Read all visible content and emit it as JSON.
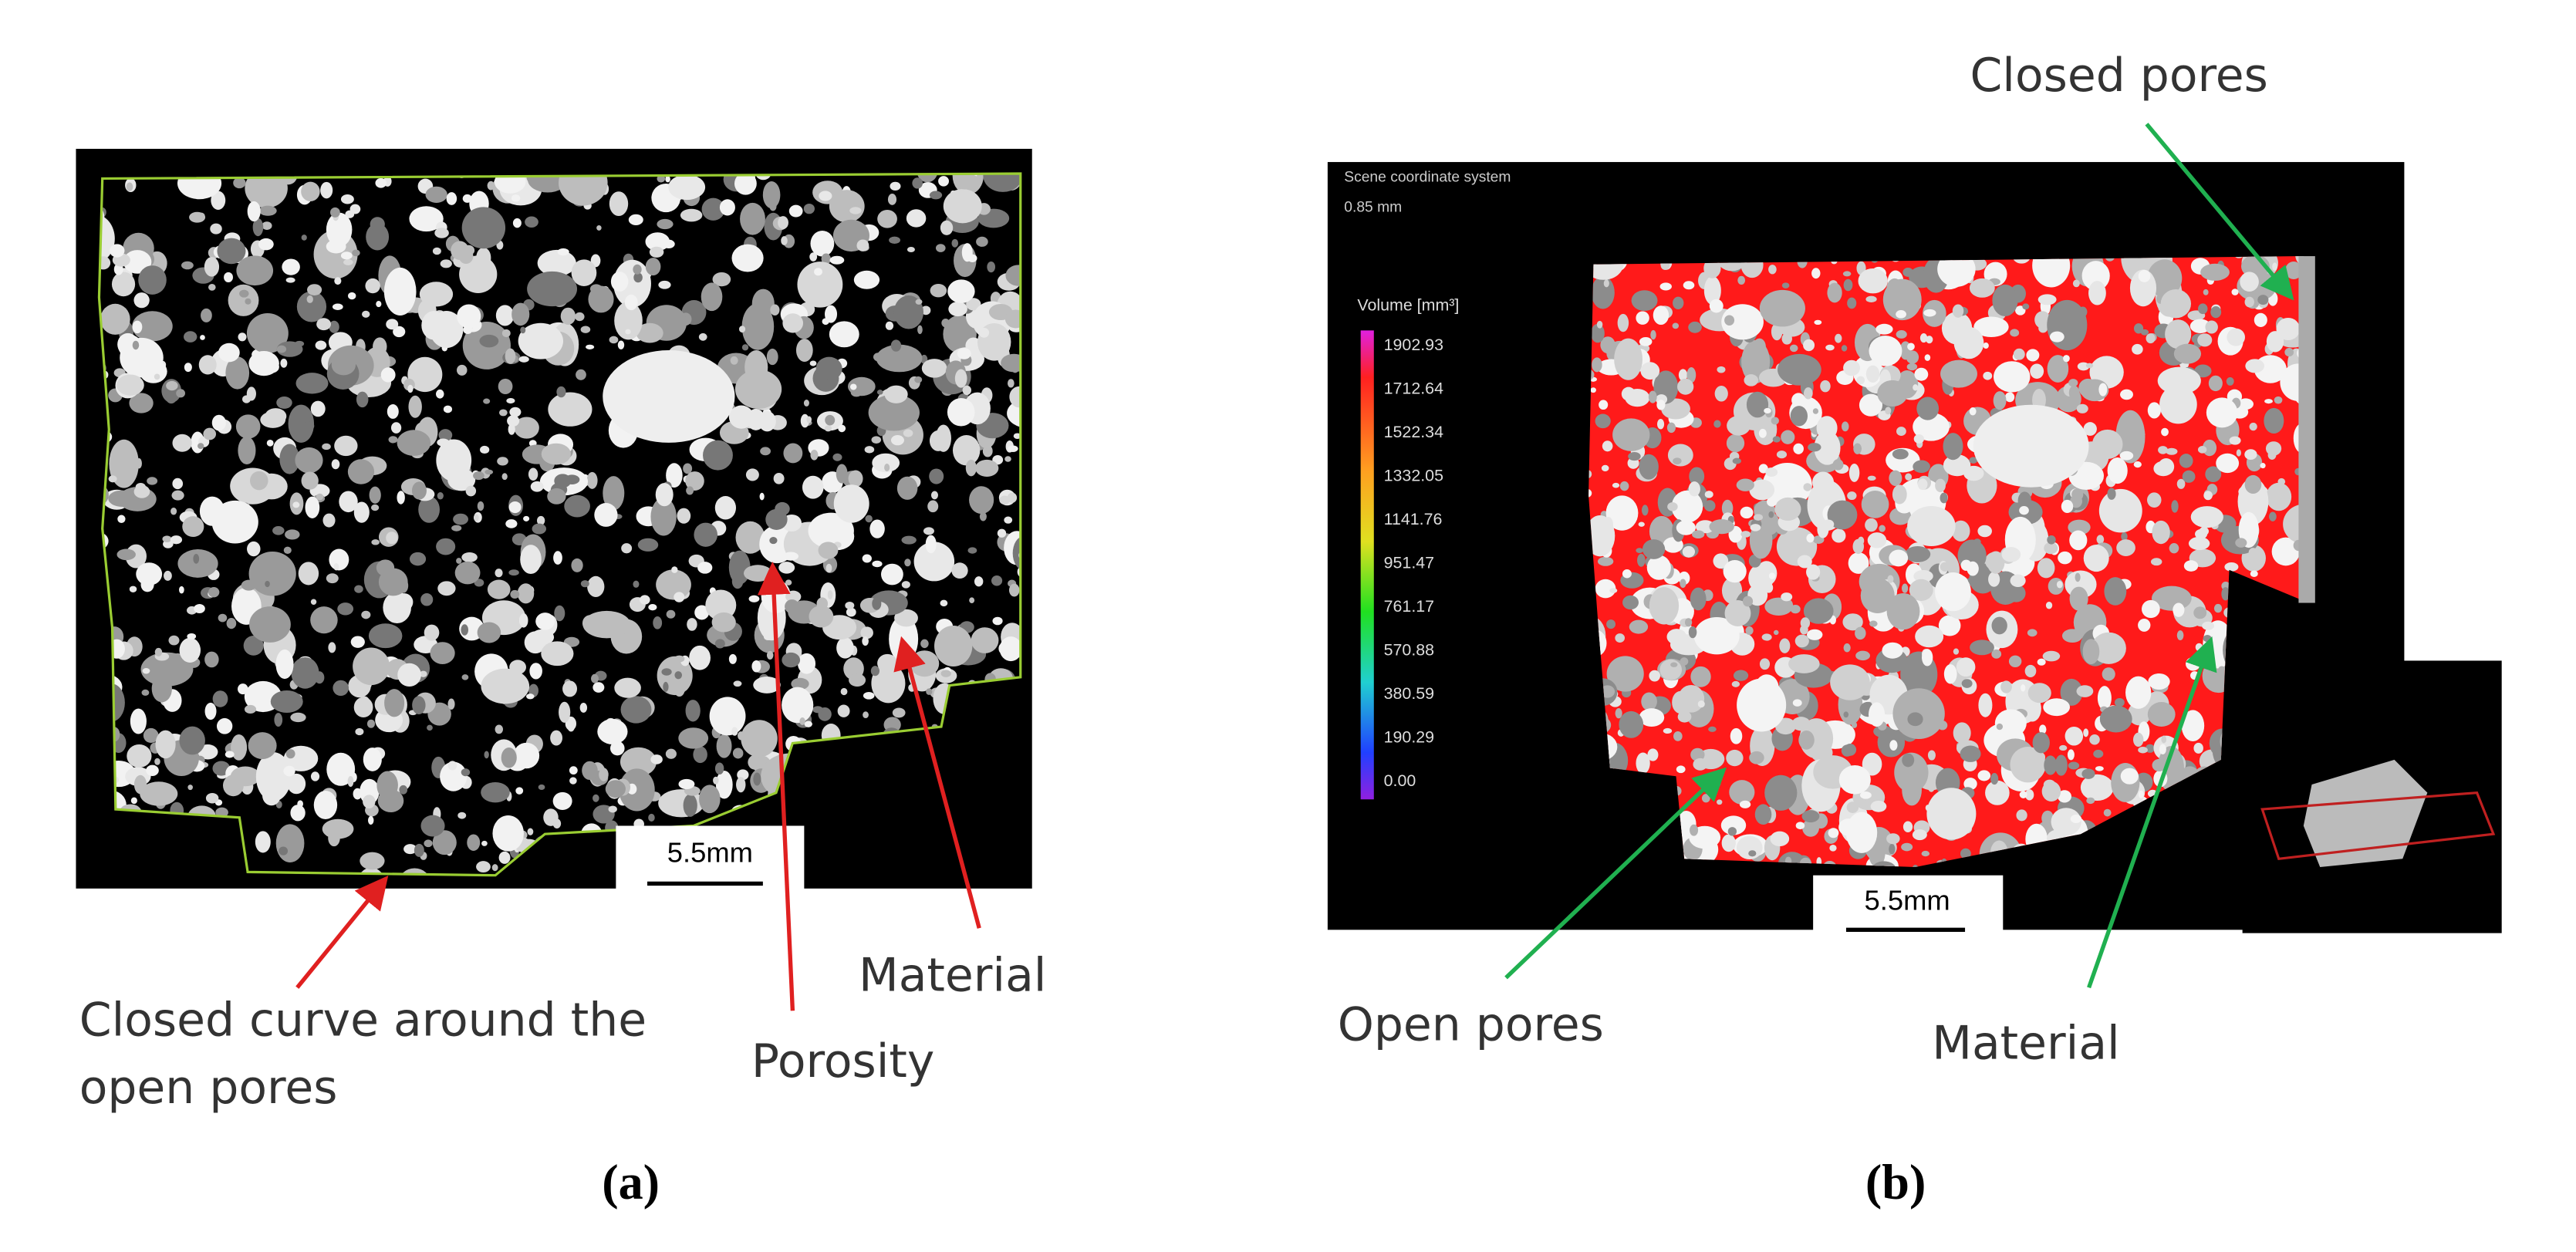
{
  "panel_a": {
    "caption": "(a)",
    "scale_bar": "5.5mm",
    "annotations": {
      "closed_curve": [
        "Closed curve around the",
        "open pores"
      ],
      "porosity": "Porosity",
      "material": "Material"
    }
  },
  "panel_b": {
    "caption": "(b)",
    "scale_bar": "5.5mm",
    "header": [
      "Scene coordinate system",
      "0.85 mm"
    ],
    "legend": {
      "title": "Volume [mm³]",
      "ticks": [
        "1902.93",
        "1712.64",
        "1522.34",
        "1332.05",
        "1141.76",
        "951.47",
        "761.17",
        "570.88",
        "380.59",
        "190.29",
        "0.00"
      ]
    },
    "annotations": {
      "closed_pores": "Closed pores",
      "open_pores": "Open pores",
      "material": "Material"
    }
  }
}
